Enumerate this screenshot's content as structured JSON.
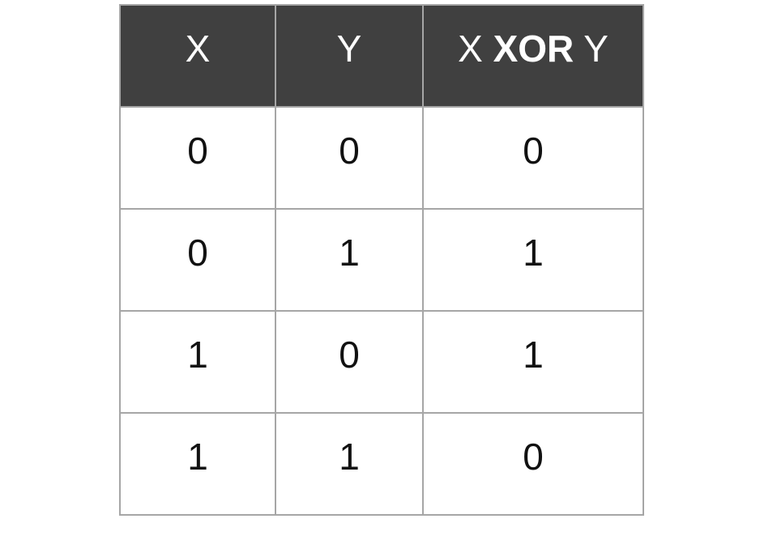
{
  "table": {
    "headers": {
      "x": "X",
      "y": "Y",
      "result_prefix": "X",
      "result_operator": "XOR",
      "result_suffix": "Y"
    },
    "rows": [
      {
        "x": "0",
        "y": "0",
        "result": "0"
      },
      {
        "x": "0",
        "y": "1",
        "result": "1"
      },
      {
        "x": "1",
        "y": "0",
        "result": "1"
      },
      {
        "x": "1",
        "y": "1",
        "result": "0"
      }
    ],
    "colors": {
      "header_background": "#404040",
      "header_text": "#ffffff",
      "grid_line": "#a6a6a6",
      "cell_text": "#111111"
    }
  }
}
